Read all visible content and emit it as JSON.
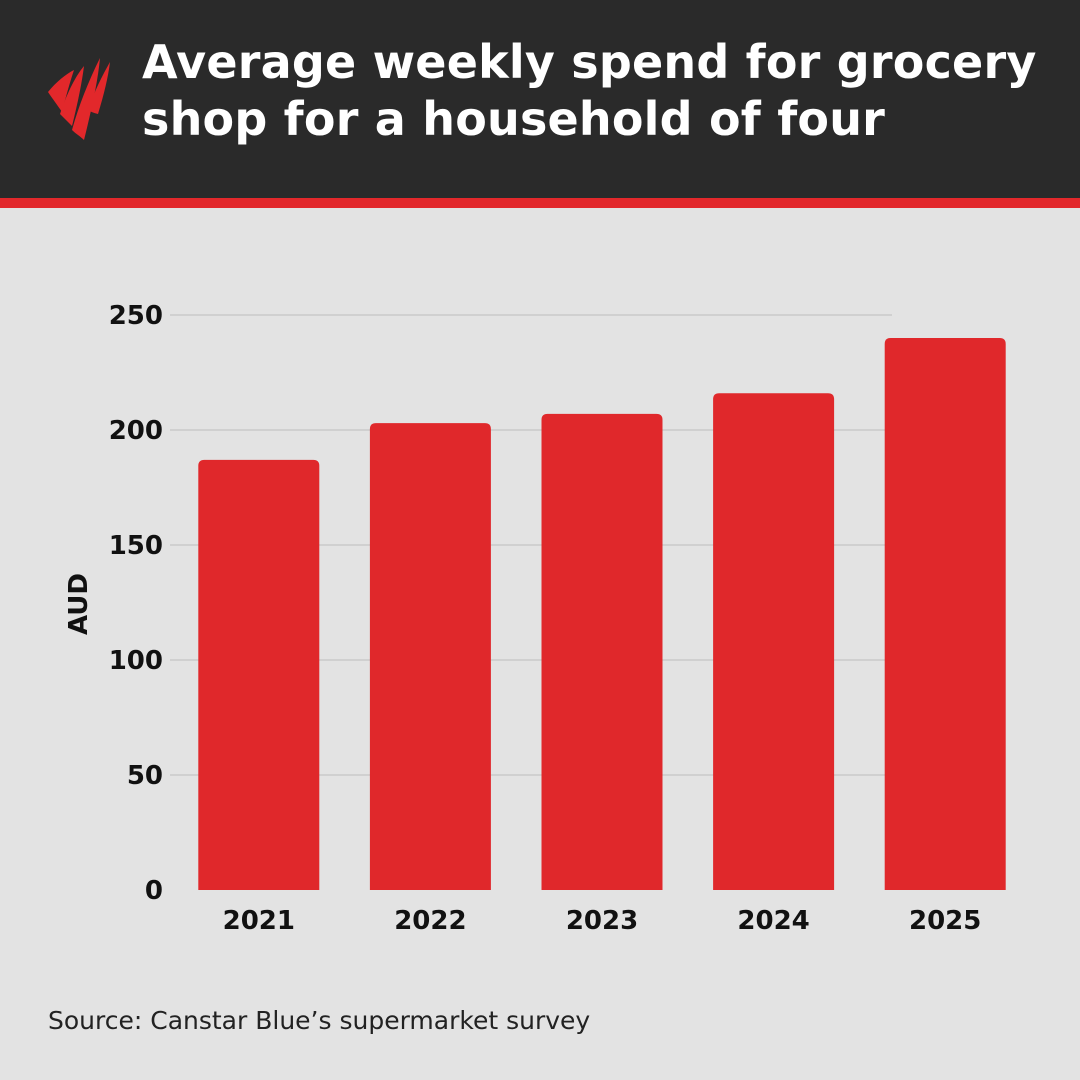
{
  "header": {
    "title_line1": "Average weekly spend for grocery",
    "title_line2": "shop for a household of four",
    "logo_icon": "sbs-logo-icon"
  },
  "colors": {
    "header_bg": "#2a2a2a",
    "accent": "#e2282b",
    "background": "#e3e3e3",
    "bar": "#e0282b"
  },
  "chart_data": {
    "type": "bar",
    "title": "Average weekly spend for grocery shop for a household of four",
    "categories": [
      "2021",
      "2022",
      "2023",
      "2024",
      "2025"
    ],
    "values": [
      187,
      203,
      207,
      216,
      240
    ],
    "xlabel": "",
    "ylabel": "AUD",
    "ylim": [
      0,
      250
    ],
    "yticks": [
      0,
      50,
      100,
      150,
      200,
      250
    ],
    "grid": true,
    "legend": "none"
  },
  "footer": {
    "source": "Source: Canstar Blue’s supermarket survey"
  }
}
